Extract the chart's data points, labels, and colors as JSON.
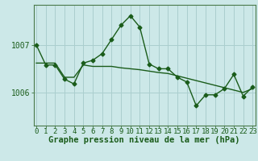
{
  "xlabel": "Graphe pression niveau de la mer (hPa)",
  "background_color": "#cce8e8",
  "grid_color": "#aacece",
  "line_color": "#1a5c1a",
  "x_labels": [
    "0",
    "1",
    "2",
    "3",
    "4",
    "5",
    "6",
    "7",
    "8",
    "9",
    "10",
    "11",
    "12",
    "13",
    "14",
    "15",
    "16",
    "17",
    "18",
    "19",
    "20",
    "21",
    "22",
    "23"
  ],
  "y_ticks": [
    1006,
    1007
  ],
  "ylim": [
    1005.3,
    1007.85
  ],
  "xlim": [
    -0.3,
    23.3
  ],
  "main_series": [
    1007.0,
    1006.58,
    1006.58,
    1006.28,
    1006.18,
    1006.62,
    1006.68,
    1006.82,
    1007.12,
    1007.42,
    1007.62,
    1007.38,
    1006.6,
    1006.5,
    1006.5,
    1006.32,
    1006.22,
    1005.72,
    1005.95,
    1005.95,
    1006.08,
    1006.38,
    1005.92,
    1006.12
  ],
  "trend_series": [
    1006.62,
    1006.62,
    1006.62,
    1006.32,
    1006.32,
    1006.58,
    1006.55,
    1006.55,
    1006.55,
    1006.52,
    1006.5,
    1006.48,
    1006.45,
    1006.42,
    1006.4,
    1006.35,
    1006.3,
    1006.25,
    1006.2,
    1006.15,
    1006.1,
    1006.05,
    1006.0,
    1006.08
  ],
  "label_fontsize": 6.5,
  "axis_fontsize": 7,
  "xlabel_fontsize": 7.5,
  "marker_size": 2.5,
  "line_width": 1.0
}
